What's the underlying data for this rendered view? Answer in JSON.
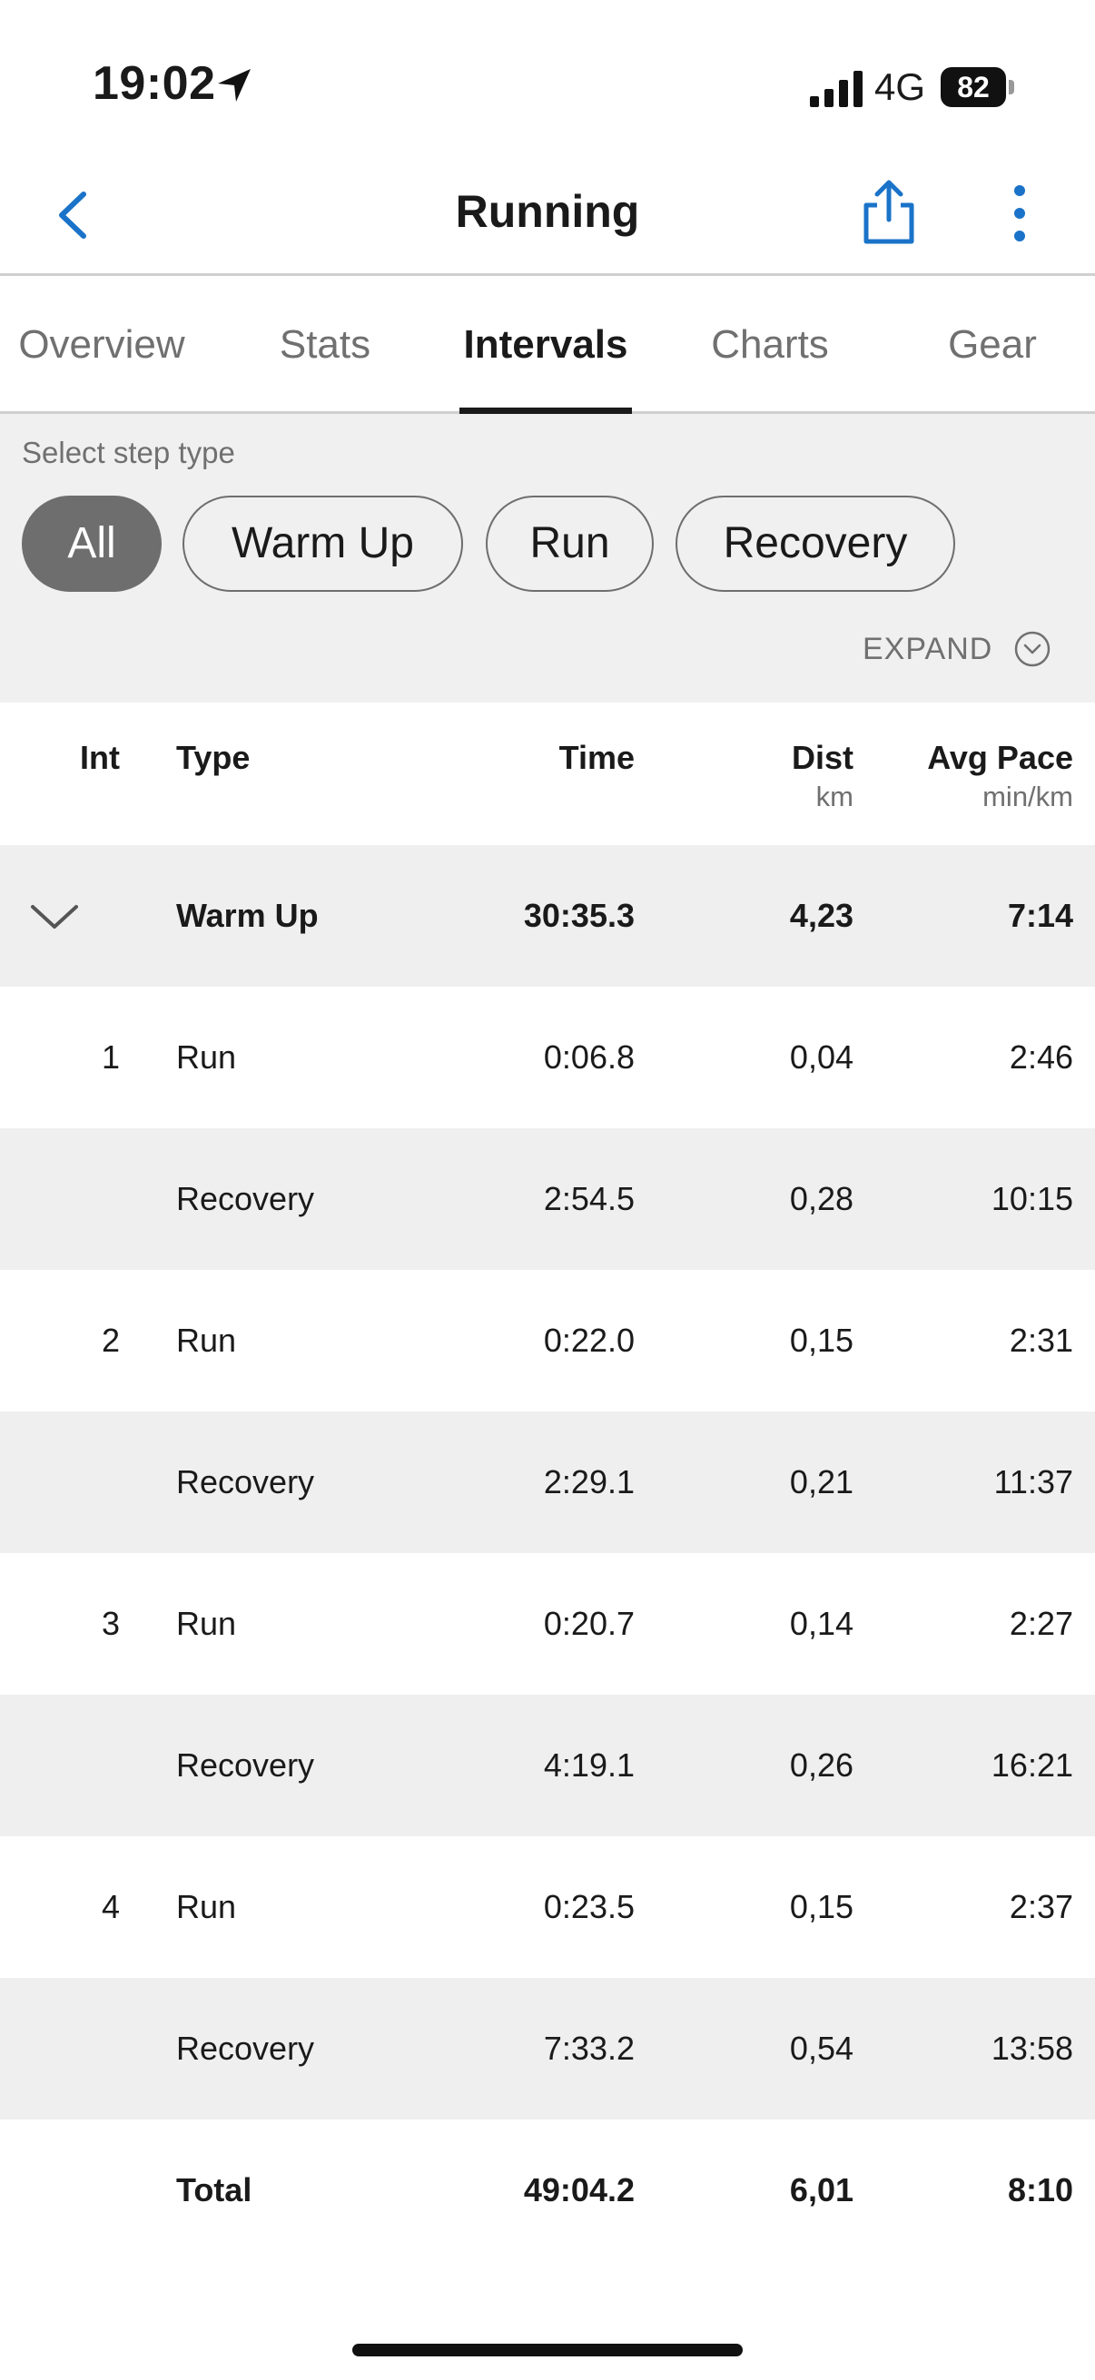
{
  "status_bar": {
    "time": "19:02",
    "network": "4G",
    "battery": "82"
  },
  "nav": {
    "title": "Running"
  },
  "tabs": [
    {
      "label": "Overview"
    },
    {
      "label": "Stats"
    },
    {
      "label": "Intervals"
    },
    {
      "label": "Charts"
    },
    {
      "label": "Gear"
    }
  ],
  "filter": {
    "label": "Select step type",
    "chips": [
      "All",
      "Warm Up",
      "Run",
      "Recovery"
    ],
    "selected": "All",
    "expand_label": "EXPAND"
  },
  "table": {
    "headers": {
      "int": "Int",
      "type": "Type",
      "time": "Time",
      "dist": "Dist",
      "dist_unit": "km",
      "pace": "Avg Pace",
      "pace_unit": "min/km"
    },
    "rows": [
      {
        "int": "",
        "type": "Warm Up",
        "time": "30:35.3",
        "dist": "4,23",
        "pace": "7:14"
      },
      {
        "int": "1",
        "type": "Run",
        "time": "0:06.8",
        "dist": "0,04",
        "pace": "2:46"
      },
      {
        "int": "",
        "type": "Recovery",
        "time": "2:54.5",
        "dist": "0,28",
        "pace": "10:15"
      },
      {
        "int": "2",
        "type": "Run",
        "time": "0:22.0",
        "dist": "0,15",
        "pace": "2:31"
      },
      {
        "int": "",
        "type": "Recovery",
        "time": "2:29.1",
        "dist": "0,21",
        "pace": "11:37"
      },
      {
        "int": "3",
        "type": "Run",
        "time": "0:20.7",
        "dist": "0,14",
        "pace": "2:27"
      },
      {
        "int": "",
        "type": "Recovery",
        "time": "4:19.1",
        "dist": "0,26",
        "pace": "16:21"
      },
      {
        "int": "4",
        "type": "Run",
        "time": "0:23.5",
        "dist": "0,15",
        "pace": "2:37"
      },
      {
        "int": "",
        "type": "Recovery",
        "time": "7:33.2",
        "dist": "0,54",
        "pace": "13:58"
      }
    ],
    "total": {
      "type": "Total",
      "time": "49:04.2",
      "dist": "6,01",
      "pace": "8:10"
    }
  },
  "colors": {
    "accent": "#1a73c8",
    "chip_selected": "#6e6e6e",
    "row_alt": "#efefef"
  }
}
